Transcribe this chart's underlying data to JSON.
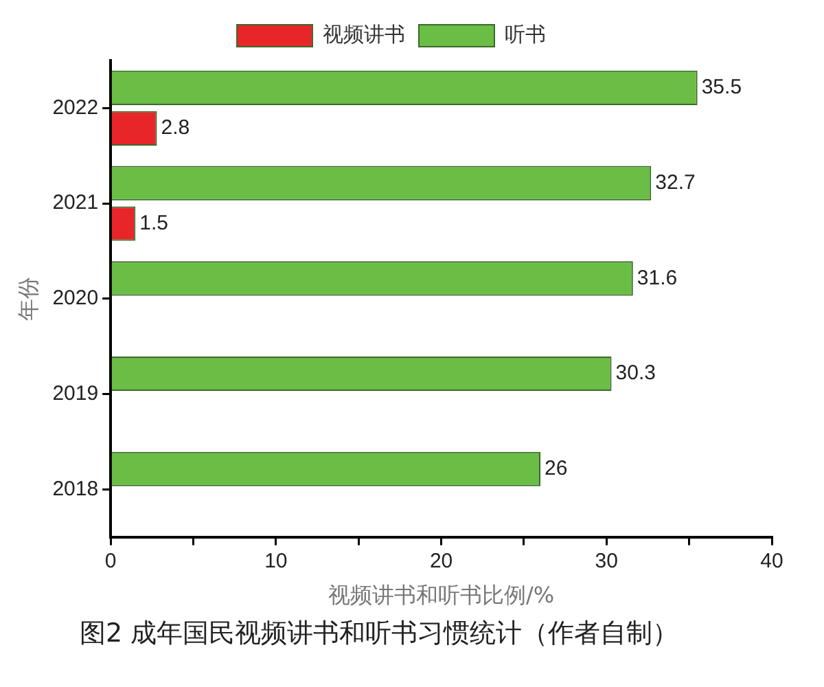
{
  "chart_data": {
    "type": "bar",
    "orientation": "horizontal",
    "categories": [
      "2022",
      "2021",
      "2020",
      "2019",
      "2018"
    ],
    "series": [
      {
        "name": "视频讲书",
        "color": "#e8262a",
        "values": [
          2.8,
          1.5,
          null,
          null,
          null
        ]
      },
      {
        "name": "听书",
        "color": "#6abd45",
        "values": [
          35.5,
          32.7,
          31.6,
          30.3,
          26
        ]
      }
    ],
    "xlabel": "视频讲书和听书比例/%",
    "ylabel": "年份",
    "xlim": [
      0,
      40
    ],
    "xticks": [
      0,
      {
        "value": 5,
        "label": null
      },
      10,
      {
        "value": 15,
        "label": null
      },
      20,
      {
        "value": 25,
        "label": null
      },
      30,
      {
        "value": 35,
        "label": null
      },
      40
    ],
    "grid": false,
    "legend": "top",
    "data_labels": true,
    "annotations": [
      "图2 成年国民视频讲书和听书习惯统计（作者自制）"
    ]
  }
}
